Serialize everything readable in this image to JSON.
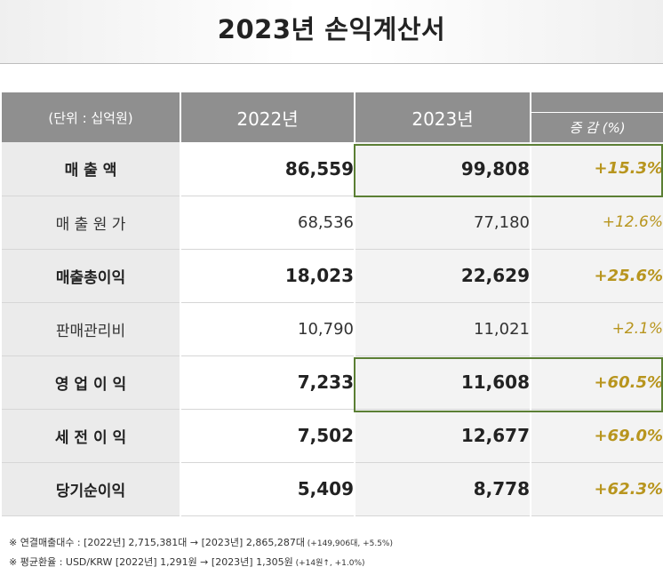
{
  "title": "2023년 손익계산서",
  "table": {
    "unit_label": "(단위 : 십억원)",
    "col_2022": "2022년",
    "col_2023": "2023년",
    "col_change": "증 감 (%)",
    "rows": [
      {
        "label": "매  출  액",
        "v2022": "86,559",
        "v2023": "99,808",
        "change": "+15.3%",
        "emphasis": true,
        "highlighted": true
      },
      {
        "label": "매 출 원 가",
        "v2022": "68,536",
        "v2023": "77,180",
        "change": "+12.6%",
        "emphasis": false,
        "highlighted": false
      },
      {
        "label": "매출총이익",
        "v2022": "18,023",
        "v2023": "22,629",
        "change": "+25.6%",
        "emphasis": true,
        "highlighted": false
      },
      {
        "label": "판매관리비",
        "v2022": "10,790",
        "v2023": "11,021",
        "change": "+2.1%",
        "emphasis": false,
        "highlighted": false
      },
      {
        "label": "영 업 이 익",
        "v2022": "7,233",
        "v2023": "11,608",
        "change": "+60.5%",
        "emphasis": true,
        "highlighted": true
      },
      {
        "label": "세 전 이 익",
        "v2022": "7,502",
        "v2023": "12,677",
        "change": "+69.0%",
        "emphasis": true,
        "highlighted": false
      },
      {
        "label": "당기순이익",
        "v2022": "5,409",
        "v2023": "8,778",
        "change": "+62.3%",
        "emphasis": true,
        "highlighted": false
      }
    ]
  },
  "notes": {
    "line1_main": "※  연결매출대수 : [2022년] 2,715,381대  →  [2023년] 2,865,287대",
    "line1_small": " (+149,906대, +5.5%)",
    "line2_main": "※  평균환율 : USD/KRW [2022년] 1,291원  →  [2023년] 1,305원",
    "line2_small": " (+14원↑, +1.0%)"
  },
  "colors": {
    "header_bg": "#8f8f8f",
    "change_text": "#b8951e",
    "highlight_border": "#5b7f34"
  }
}
